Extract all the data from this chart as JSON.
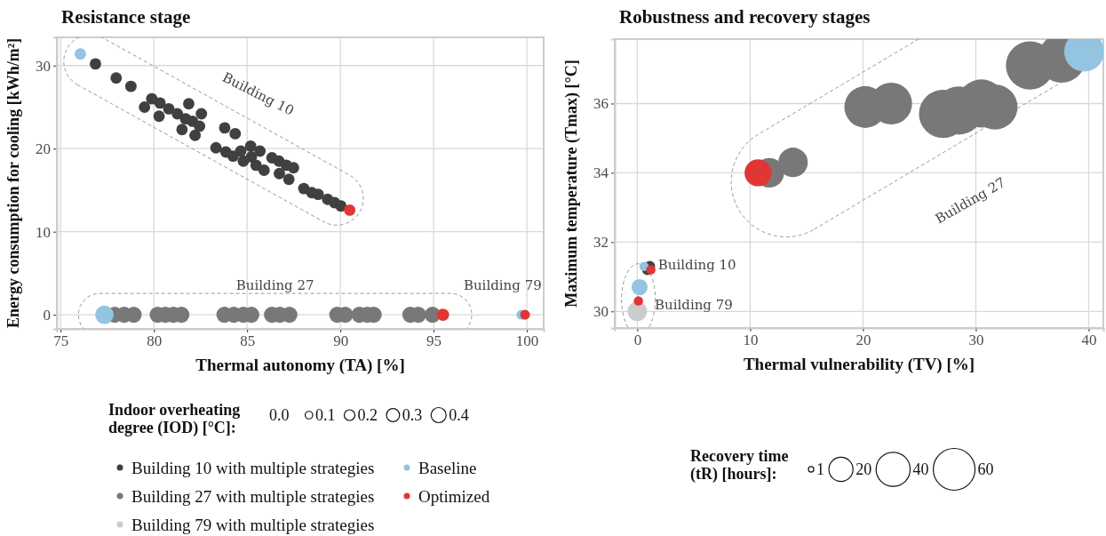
{
  "chart_data": [
    {
      "type": "bubble",
      "title": "Resistance stage",
      "xlabel": "Thermal autonomy (TA) [%]",
      "ylabel": "Energy consumption for cooling [kWh/m²]",
      "legend_title": "Indoor overheating degree (IOD) [°C]:",
      "size_legend": [
        {
          "value": 0,
          "label": "0.0"
        },
        {
          "value": 0.1,
          "label": "0.1"
        },
        {
          "value": 0.2,
          "label": "0.2"
        },
        {
          "value": 0.3,
          "label": "0.3"
        },
        {
          "value": 0.4,
          "label": "0.4"
        }
      ],
      "xlim": [
        74.8,
        100.9
      ],
      "ylim": [
        -1.7,
        33.4
      ],
      "xticks": [
        75,
        80,
        85,
        90,
        95,
        100
      ],
      "yticks": [
        0,
        10,
        20,
        30
      ],
      "grid": true,
      "legend": "bottom",
      "marker": "circle",
      "annotations": [
        "Building 10",
        "Building 27",
        "Building 79"
      ],
      "series": [
        {
          "name": "Building 10 with multiple strategies",
          "color": "#404040",
          "x": [
            76.87,
            77.98,
            78.77,
            79.89,
            79.5,
            80.33,
            80.28,
            80.8,
            81.26,
            81.87,
            82.55,
            81.7,
            82.07,
            82.45,
            81.51,
            82.21,
            83.8,
            84.36,
            83.33,
            83.86,
            84.25,
            84.66,
            85.19,
            84.8,
            85.23,
            85.69,
            85.48,
            85.91,
            86.33,
            86.71,
            87.1,
            87.49,
            86.73,
            87.24,
            88.04,
            88.47,
            88.81,
            89.32,
            89.69,
            90.03
          ],
          "values": [
            30.2,
            28.5,
            27.5,
            26.0,
            25.0,
            25.5,
            23.9,
            24.8,
            24.2,
            25.4,
            24.2,
            23.6,
            23.3,
            22.7,
            22.3,
            21.6,
            22.5,
            21.8,
            20.1,
            19.6,
            19.1,
            19.7,
            20.3,
            18.5,
            19.0,
            19.7,
            18.0,
            17.4,
            18.9,
            18.5,
            18.0,
            17.7,
            17.0,
            16.3,
            15.2,
            14.7,
            14.5,
            13.9,
            13.5,
            13.1
          ],
          "sizes": [
            0.23,
            0.23,
            0.23,
            0.23,
            0.23,
            0.23,
            0.23,
            0.23,
            0.23,
            0.23,
            0.23,
            0.23,
            0.23,
            0.23,
            0.23,
            0.23,
            0.23,
            0.23,
            0.23,
            0.23,
            0.23,
            0.23,
            0.23,
            0.23,
            0.23,
            0.23,
            0.23,
            0.23,
            0.23,
            0.23,
            0.23,
            0.23,
            0.23,
            0.23,
            0.23,
            0.23,
            0.23,
            0.23,
            0.23,
            0.23
          ]
        },
        {
          "name": "Building 27 with multiple strategies",
          "color": "#787878",
          "x": [
            77.9,
            78.41,
            78.92,
            80.2,
            80.62,
            81.05,
            81.48,
            83.78,
            84.29,
            84.8,
            85.23,
            86.33,
            86.76,
            87.27,
            89.83,
            90.26,
            91.02,
            91.45,
            91.79,
            93.75,
            94.18,
            94.94
          ],
          "values": [
            0,
            0,
            0,
            0,
            0,
            0,
            0,
            0,
            0,
            0,
            0,
            0,
            0,
            0,
            0,
            0,
            0,
            0,
            0,
            0,
            0,
            0
          ],
          "sizes": [
            0.45,
            0.45,
            0.45,
            0.45,
            0.45,
            0.45,
            0.45,
            0.45,
            0.45,
            0.45,
            0.45,
            0.45,
            0.45,
            0.45,
            0.45,
            0.45,
            0.45,
            0.45,
            0.45,
            0.45,
            0.45,
            0.45
          ]
        },
        {
          "name": "Building 79 with multiple strategies",
          "color": "#cccccc"
        },
        {
          "name": "Baseline",
          "color": "#93c4e1",
          "x": [
            76.06,
            77.35,
            99.7
          ],
          "values": [
            31.4,
            0,
            0
          ],
          "sizes": [
            0.23,
            0.6,
            0.17
          ]
        },
        {
          "name": "Optimized",
          "color": "#e03634",
          "x": [
            90.5,
            95.5,
            99.9
          ],
          "values": [
            12.6,
            0,
            0
          ],
          "sizes": [
            0.23,
            0.27,
            0.17
          ]
        }
      ]
    },
    {
      "type": "bubble",
      "title": "Robustness and recovery stages",
      "xlabel": "Thermal vulnerability (TV) [%]",
      "ylabel": "Maximum temperature (Tmax) [°C]",
      "legend_title": "Recovery time (tR) [hours]:",
      "size_legend": [
        1,
        20,
        40,
        60
      ],
      "xlim": [
        -2.0,
        41.3
      ],
      "ylim": [
        29.52,
        37.86
      ],
      "xticks": [
        0,
        10,
        20,
        30,
        40
      ],
      "yticks": [
        30,
        32,
        34,
        36
      ],
      "grid": true,
      "marker": "circle",
      "annotations": [
        "Building 27",
        "Building 10",
        "Building 79"
      ],
      "series": [
        {
          "color": "#404040",
          "x": [
            0.9,
            1.1
          ],
          "values": [
            31.2,
            31.3
          ],
          "sizes": [
            4,
            4
          ]
        },
        {
          "color": "#787878",
          "x": [
            11.7,
            13.8,
            20.2,
            22.5,
            27.1,
            28.5,
            30.5,
            31.7,
            34.8,
            37.6
          ],
          "values": [
            34.0,
            34.3,
            35.9,
            36.0,
            35.7,
            35.8,
            36.0,
            35.9,
            37.1,
            37.3
          ],
          "sizes": [
            30,
            30,
            60,
            60,
            80,
            80,
            80,
            70,
            80,
            80
          ]
        },
        {
          "color": "#cccccc",
          "x": [
            0
          ],
          "values": [
            30.0
          ],
          "sizes": [
            13
          ]
        },
        {
          "color": "#93c4e1",
          "x": [
            0.6,
            0.2,
            39.6
          ],
          "values": [
            31.3,
            30.7,
            37.5
          ],
          "sizes": [
            3,
            9,
            55
          ]
        },
        {
          "color": "#e03634",
          "x": [
            1.2,
            0.1,
            10.7
          ],
          "values": [
            31.2,
            30.3,
            34.0
          ],
          "sizes": [
            3,
            3,
            25
          ]
        }
      ]
    }
  ]
}
